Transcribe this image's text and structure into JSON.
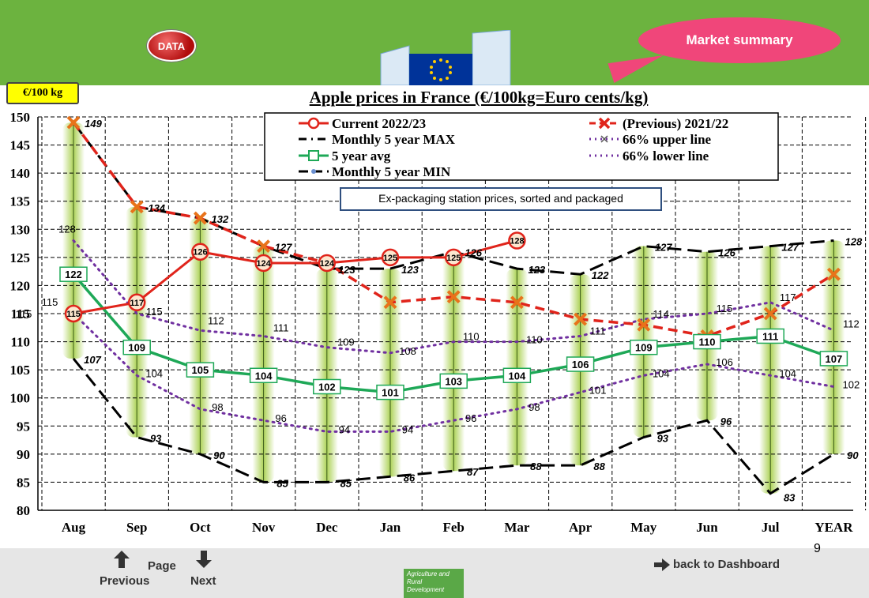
{
  "header": {
    "data_button": "DATA",
    "market_summary_button": "Market summary",
    "unit_label": "€/100 kg"
  },
  "footer": {
    "page_number": "9",
    "page_label": "Page",
    "previous_label": "Previous",
    "next_label": "Next",
    "dashboard_label": "back to Dashboard",
    "agri_badge": "Agriculture and Rural Development"
  },
  "colors": {
    "top_bar": "#6cb33f",
    "current": "#e0241b",
    "previous": "#e0241b",
    "avg": "#1ea857",
    "minmax": "#000000",
    "band": "#7030a0",
    "highlight_bar": "#a9d04f"
  },
  "chart_data": {
    "type": "line",
    "title": "Apple prices in France (€/100kg=Euro cents/kg)",
    "annotation": "Ex-packaging station prices, sorted and packaged",
    "categories": [
      "Aug",
      "Sep",
      "Oct",
      "Nov",
      "Dec",
      "Jan",
      "Feb",
      "Mar",
      "Apr",
      "May",
      "Jun",
      "Jul",
      "YEAR"
    ],
    "ylim": [
      80,
      150
    ],
    "yticks": [
      80,
      85,
      90,
      95,
      100,
      105,
      110,
      115,
      120,
      125,
      130,
      135,
      140,
      145,
      150
    ],
    "grid": true,
    "series": [
      {
        "name": "Current 2022/23",
        "values": [
          115,
          117,
          126,
          124,
          124,
          125,
          125,
          128,
          null,
          null,
          null,
          null,
          null
        ]
      },
      {
        "name": "(Previous) 2021/22",
        "values": [
          149,
          134,
          132,
          127,
          124,
          117,
          118,
          117,
          114,
          113,
          111,
          115,
          122
        ]
      },
      {
        "name": "Monthly 5 year MAX",
        "values": [
          149,
          134,
          132,
          127,
          123,
          123,
          126,
          123,
          122,
          127,
          126,
          127,
          128
        ]
      },
      {
        "name": "66% upper line",
        "values": [
          128,
          115,
          112,
          111,
          109,
          108,
          110,
          110,
          111,
          114,
          115,
          117,
          112
        ]
      },
      {
        "name": "5 year avg",
        "values": [
          122,
          109,
          105,
          104,
          102,
          101,
          103,
          104,
          106,
          109,
          110,
          111,
          107
        ]
      },
      {
        "name": "66% lower line",
        "values": [
          115,
          104,
          98,
          96,
          94,
          94,
          96,
          98,
          101,
          104,
          106,
          104,
          102
        ]
      },
      {
        "name": "Monthly 5 year MIN",
        "values": [
          107,
          93,
          90,
          85,
          85,
          86,
          87,
          88,
          88,
          93,
          96,
          83,
          90
        ]
      }
    ]
  }
}
